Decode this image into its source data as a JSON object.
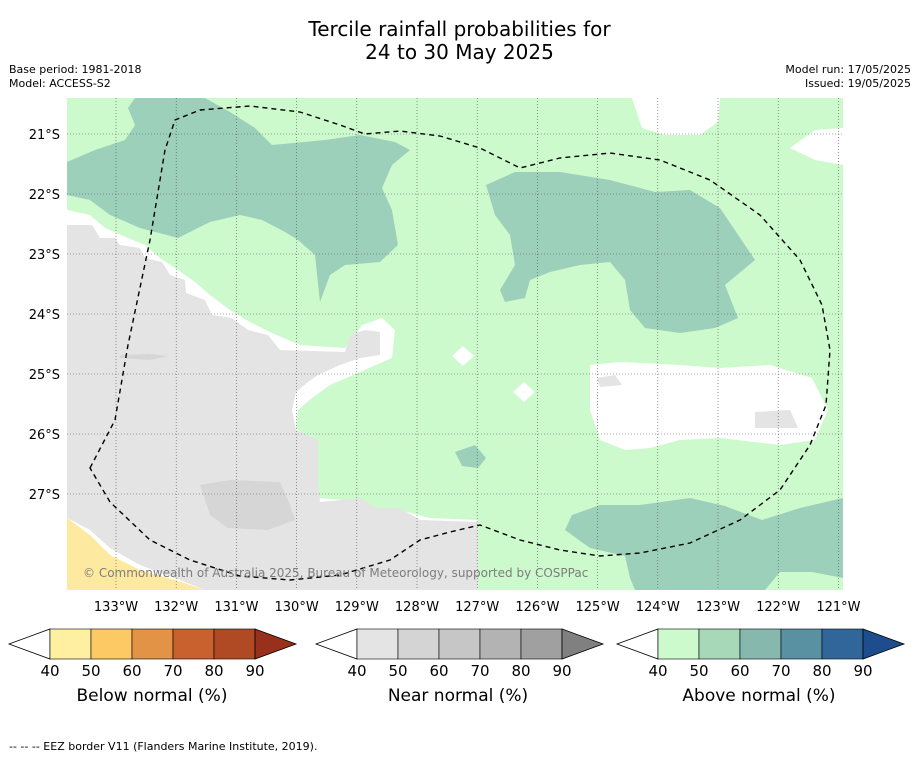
{
  "title": {
    "line1": "Tercile rainfall probabilities for",
    "line2": "24 to 30 May 2025"
  },
  "meta_left": {
    "base_period": "Base period: 1981-2018",
    "model": "Model: ACCESS-S2"
  },
  "meta_right": {
    "model_run": "Model run: 17/05/2025",
    "issued": "Issued: 19/05/2025"
  },
  "map": {
    "lat_labels": [
      "21°S",
      "22°S",
      "23°S",
      "24°S",
      "25°S",
      "26°S",
      "27°S"
    ],
    "lon_labels": [
      "133°W",
      "132°W",
      "131°W",
      "130°W",
      "129°W",
      "128°W",
      "127°W",
      "126°W",
      "125°W",
      "124°W",
      "123°W",
      "122°W",
      "121°W"
    ],
    "copyright": "© Commonwealth of Australia 2025, Bureau of Meteorology, supported by COSPPac",
    "colors": {
      "above_40": "#ccfacc",
      "above_50": "#9dd0bb",
      "near_40": "#e4e4e4",
      "near_50": "#d6d6d6",
      "below_40": "#fdeaa0",
      "no_data": "#ffffff"
    }
  },
  "colorbars": [
    {
      "caption": "Below normal (%)",
      "ticks": [
        "40",
        "50",
        "60",
        "70",
        "80",
        "90"
      ],
      "colors": [
        "#ffffff",
        "#fef0a0",
        "#fdc964",
        "#e29346",
        "#c9612e",
        "#b04a24",
        "#98301b"
      ]
    },
    {
      "caption": "Near normal (%)",
      "ticks": [
        "40",
        "50",
        "60",
        "70",
        "80",
        "90"
      ],
      "colors": [
        "#ffffff",
        "#e4e4e4",
        "#d4d4d4",
        "#c6c6c6",
        "#b3b3b3",
        "#a0a0a0",
        "#808080"
      ]
    },
    {
      "caption": "Above normal (%)",
      "ticks": [
        "40",
        "50",
        "60",
        "70",
        "80",
        "90"
      ],
      "colors": [
        "#ffffff",
        "#ccfacc",
        "#a7d9b8",
        "#86b8ad",
        "#5991a2",
        "#31669a",
        "#1d4d8c"
      ]
    }
  ],
  "footer": "--  --  -- EEZ border V11 (Flanders Marine Institute, 2019)."
}
